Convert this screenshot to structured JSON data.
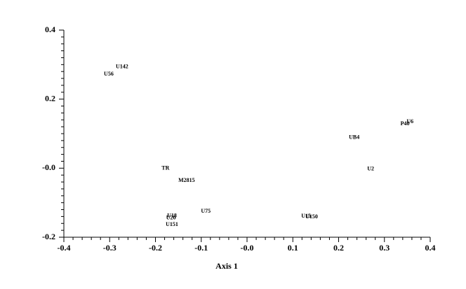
{
  "chart_data": {
    "type": "scatter",
    "x_label": "Axis 1",
    "point_labels": [
      "U142",
      "U56",
      "P40",
      "U6",
      "UB4",
      "TR",
      "U2",
      "M2815",
      "U75",
      "U18",
      "U20",
      "U151",
      "U15",
      "U150"
    ],
    "x": [
      -0.273,
      -0.302,
      0.345,
      0.356,
      0.234,
      -0.178,
      0.27,
      -0.132,
      -0.09,
      -0.164,
      -0.166,
      -0.164,
      0.129,
      0.141
    ],
    "values": [
      0.293,
      0.272,
      0.128,
      0.134,
      0.088,
      -0.001,
      -0.003,
      -0.036,
      -0.125,
      -0.139,
      -0.145,
      -0.164,
      -0.14,
      -0.142
    ],
    "xlim": [
      -0.4,
      0.4
    ],
    "ylim": [
      -0.2,
      0.4
    ],
    "xticks": [
      -0.4,
      -0.3,
      -0.2,
      -0.1,
      {
        "value": 0,
        "label": "-0.0"
      },
      0.1,
      0.2,
      0.3,
      0.4
    ],
    "yticks": [
      -0.2,
      {
        "value": 0,
        "label": "-0.0"
      },
      0.2,
      0.4
    ],
    "xminorticks": [
      -0.38,
      -0.36,
      -0.34,
      -0.32,
      -0.28,
      -0.26,
      -0.24,
      -0.22,
      -0.18,
      -0.16,
      -0.14,
      -0.12,
      -0.08,
      -0.06,
      -0.04,
      -0.02,
      0.02,
      0.04,
      0.06,
      0.08,
      0.12,
      0.14,
      0.16,
      0.18,
      0.22,
      0.24,
      0.26,
      0.28,
      0.32,
      0.34,
      0.36,
      0.38
    ],
    "yminorticks": [
      -0.18,
      -0.16,
      -0.14,
      -0.12,
      -0.1,
      -0.08,
      -0.06,
      -0.04,
      -0.02,
      0.02,
      0.04,
      0.06,
      0.08,
      0.1,
      0.12,
      0.14,
      0.16,
      0.18,
      0.22,
      0.24,
      0.26,
      0.28,
      0.3,
      0.32,
      0.34,
      0.36,
      0.38
    ],
    "color": "#000000"
  }
}
